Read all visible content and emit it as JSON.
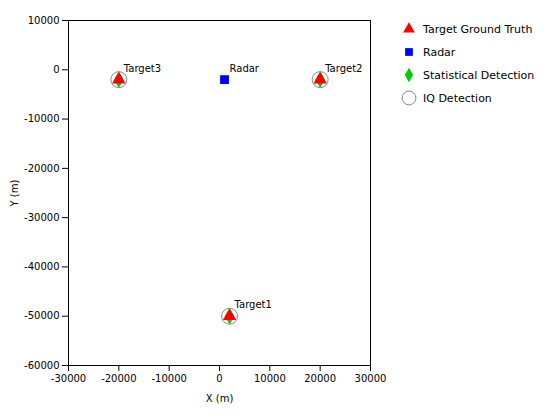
{
  "chart_data": {
    "type": "scatter",
    "xlabel": "X (m)",
    "ylabel": "Y (m)",
    "xlim": [
      -30000,
      30000
    ],
    "ylim": [
      -60000,
      10000
    ],
    "xticks": [
      -30000,
      -20000,
      -10000,
      0,
      10000,
      20000,
      30000
    ],
    "yticks": [
      -60000,
      -50000,
      -40000,
      -30000,
      -20000,
      -10000,
      0,
      10000
    ],
    "legend": "right",
    "series": [
      {
        "name": "Target Ground Truth",
        "color": "#FF0000",
        "marker": "triangle",
        "x": [
          2000,
          20000,
          -20000
        ],
        "values": [
          -50000,
          -2000,
          -2000
        ]
      },
      {
        "name": "Radar",
        "color": "#0000FF",
        "marker": "square",
        "x": [
          1000
        ],
        "values": [
          -2000
        ]
      },
      {
        "name": "Statistical Detection",
        "color": "#00CC00",
        "marker": "diamond",
        "x": [
          2000,
          20000,
          -20000
        ],
        "values": [
          -50000,
          -2000,
          -2000
        ]
      },
      {
        "name": "IQ Detection",
        "color": "#888888",
        "marker": "open_circle",
        "x": [
          2000,
          20000,
          -20000
        ],
        "values": [
          -50000,
          -2000,
          -2000
        ]
      }
    ],
    "annotations": [
      {
        "text": "Radar",
        "x": 1000,
        "y": -2000
      },
      {
        "text": "Target1",
        "x": 2000,
        "y": -50000
      },
      {
        "text": "Target2",
        "x": 20000,
        "y": -2000
      },
      {
        "text": "Target3",
        "x": -20000,
        "y": -2000
      }
    ]
  }
}
